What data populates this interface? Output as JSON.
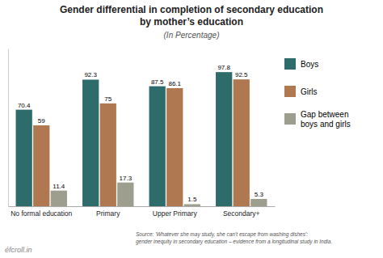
{
  "chart_data": {
    "type": "bar",
    "title": "Gender differential in completion of secondary education\nby mother’s education",
    "subtitle": "(In Percentage)",
    "categories": [
      "No formal education",
      "Primary",
      "Upper Primary",
      "Secondary+"
    ],
    "series": [
      {
        "name": "Boys",
        "color": "#2e6b6b",
        "values": [
          70.4,
          92.3,
          87.5,
          97.8
        ]
      },
      {
        "name": "Girls",
        "color": "#b07850",
        "values": [
          59.0,
          75.0,
          86.1,
          92.5
        ]
      },
      {
        "name": "Gap between\nboys and girls",
        "color": "#9e9e8e",
        "values": [
          11.4,
          17.3,
          1.5,
          5.3
        ]
      }
    ],
    "ylim": [
      0,
      115
    ],
    "data_labels": true,
    "tick_labels": "x",
    "grid": false,
    "legend": "right",
    "annotations": [
      "Source: 'Whatever she may study, she can’t escape from washing dishes':\ngender inequity in secondary education – evidence from a longitudinal study in India.",
      "éfcroll.in"
    ]
  }
}
